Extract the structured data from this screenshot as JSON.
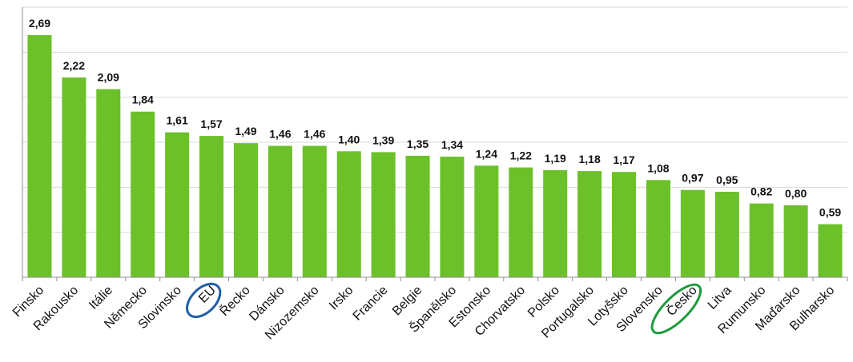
{
  "chart_data": {
    "type": "bar",
    "categories": [
      "Finsko",
      "Rakousko",
      "Itálie",
      "Německo",
      "Slovinsko",
      "EU",
      "Řecko",
      "Dánsko",
      "Nizozemsko",
      "Irsko",
      "Francie",
      "Belgie",
      "Španělsko",
      "Estonsko",
      "Chorvatsko",
      "Polsko",
      "Portugalsko",
      "Lotyšsko",
      "Slovensko",
      "Česko",
      "Litva",
      "Rumunsko",
      "Maďarsko",
      "Bulharsko"
    ],
    "values": [
      2.69,
      2.22,
      2.09,
      1.84,
      1.61,
      1.57,
      1.49,
      1.46,
      1.46,
      1.4,
      1.39,
      1.35,
      1.34,
      1.24,
      1.22,
      1.19,
      1.18,
      1.17,
      1.08,
      0.97,
      0.95,
      0.82,
      0.8,
      0.59
    ],
    "value_labels": [
      "2,69",
      "2,22",
      "2,09",
      "1,84",
      "1,61",
      "1,57",
      "1,49",
      "1,46",
      "1,46",
      "1,40",
      "1,39",
      "1,35",
      "1,34",
      "1,24",
      "1,22",
      "1,19",
      "1,18",
      "1,17",
      "1,08",
      "0,97",
      "0,95",
      "0,82",
      "0,80",
      "0,59"
    ],
    "ylim": [
      0,
      3
    ],
    "grid": true,
    "highlighted": [
      {
        "category": "EU",
        "color": "#1f5fa8"
      },
      {
        "category": "Česko",
        "color": "#1e9a3c"
      }
    ],
    "bar_color": "#6cc12a"
  }
}
